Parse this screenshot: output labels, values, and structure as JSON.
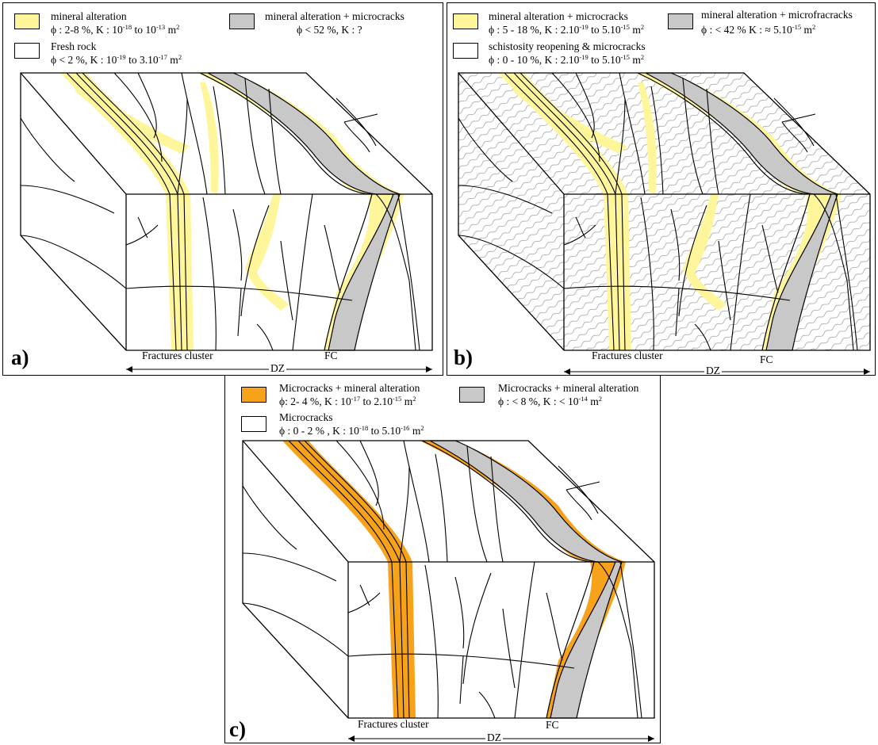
{
  "panels": {
    "a": {
      "letter": "a)",
      "legend": [
        {
          "title": "mineral alteration",
          "detail": "ϕ : 2-8 %, K : 10<sup>-18</sup> to 10<sup>-13</sup> m<sup>2</sup>",
          "swatch": "#fff69b"
        },
        {
          "title": "mineral alteration + microcracks",
          "detail": "ϕ < 52 %, K : ?",
          "swatch": "#c8c8c8"
        },
        {
          "title": "Fresh rock",
          "detail": "ϕ < 2 %, K : 10<sup>-19</sup> to 3.10<sup>-17</sup> m<sup>2</sup>",
          "swatch": "#ffffff"
        }
      ],
      "axis": {
        "fractures": "Fractures cluster",
        "dz": "DZ",
        "fc": "FC"
      }
    },
    "b": {
      "letter": "b)",
      "legend": [
        {
          "title": "mineral alteration + microcracks",
          "detail": "ϕ : 5 - 18 %, K : 2.10<sup>-19</sup> to 5.10<sup>-15</sup> m<sup>2</sup>",
          "swatch": "#fff69b"
        },
        {
          "title": "mineral alteration + microfracracks",
          "detail": "ϕ : < 42 % K : ≈ 5.10<sup>-15</sup> m<sup>2</sup>",
          "swatch": "#c8c8c8"
        },
        {
          "title": "schistosity reopening & microcracks",
          "detail": "ϕ : 0 - 10 %, K : 2.10<sup>-19</sup> to 5.10<sup>-15</sup> m<sup>2</sup>",
          "swatch": "#ffffff"
        }
      ],
      "axis": {
        "fractures": "Fractures cluster",
        "dz": "DZ",
        "fc": "FC"
      }
    },
    "c": {
      "letter": "c)",
      "legend": [
        {
          "title": "Microcracks + mineral alteration",
          "detail": "ϕ: 2- 4 %, K : 10<sup>-17</sup> to 2.10<sup>-15</sup> m<sup>2</sup>",
          "swatch": "#f7a21b"
        },
        {
          "title": "Microcracks + mineral alteration",
          "detail": "ϕ : < 8 %, K : < 10<sup>-14</sup> m<sup>2</sup>",
          "swatch": "#c8c8c8"
        },
        {
          "title": "Microcracks",
          "detail": "ϕ : 0 - 2 % , K : 10<sup>-18</sup> to 5.10<sup>-16</sup> m<sup>2</sup>",
          "swatch": "#ffffff"
        }
      ],
      "axis": {
        "fractures": "Fractures cluster",
        "dz": "DZ",
        "fc": "FC"
      }
    }
  },
  "colors": {
    "alteration_yellow": "#fff69b",
    "alteration_gray": "#c8c8c8",
    "alteration_orange": "#f7a21b",
    "line": "#000000"
  }
}
